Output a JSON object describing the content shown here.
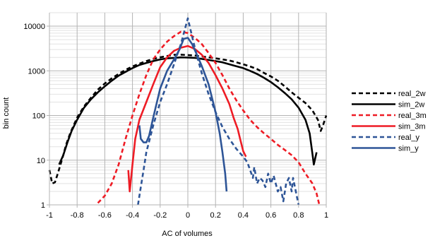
{
  "chart_data": {
    "type": "line",
    "title": "",
    "xlabel": "AC of volumes",
    "ylabel": "bin count",
    "xlim": [
      -1,
      1
    ],
    "ylim": [
      1,
      20000
    ],
    "yscale": "log",
    "grid": true,
    "legend_position": "right",
    "x_ticks": [
      {
        "value": -1,
        "label": "-1"
      },
      {
        "value": -0.8,
        "label": "-0.8"
      },
      {
        "value": -0.6,
        "label": "-0.6"
      },
      {
        "value": -0.4,
        "label": "-0.4"
      },
      {
        "value": -0.2,
        "label": "-0.2"
      },
      {
        "value": 0,
        "label": "0"
      },
      {
        "value": 0.2,
        "label": "0.2"
      },
      {
        "value": 0.4,
        "label": "0.4"
      },
      {
        "value": 0.6,
        "label": "0.6"
      },
      {
        "value": 0.8,
        "label": "0.8"
      },
      {
        "value": 1,
        "label": "1"
      }
    ],
    "y_ticks": [
      {
        "value": 1,
        "label": "1"
      },
      {
        "value": 10,
        "label": "10"
      },
      {
        "value": 100,
        "label": "100"
      },
      {
        "value": 1000,
        "label": "1000"
      },
      {
        "value": 10000,
        "label": "10000"
      }
    ],
    "series": [
      {
        "name": "real_2w",
        "color": "#000000",
        "dash": true,
        "points": [
          [
            -1,
            6
          ],
          [
            -0.98,
            3
          ],
          [
            -0.96,
            3.2
          ],
          [
            -0.94,
            5
          ],
          [
            -0.92,
            8
          ],
          [
            -0.9,
            13
          ],
          [
            -0.88,
            22
          ],
          [
            -0.85,
            40
          ],
          [
            -0.8,
            90
          ],
          [
            -0.75,
            160
          ],
          [
            -0.7,
            250
          ],
          [
            -0.65,
            380
          ],
          [
            -0.6,
            520
          ],
          [
            -0.55,
            680
          ],
          [
            -0.5,
            850
          ],
          [
            -0.45,
            1050
          ],
          [
            -0.4,
            1250
          ],
          [
            -0.35,
            1450
          ],
          [
            -0.3,
            1650
          ],
          [
            -0.25,
            1850
          ],
          [
            -0.2,
            2000
          ],
          [
            -0.15,
            2150
          ],
          [
            -0.1,
            2280
          ],
          [
            -0.05,
            2300
          ],
          [
            0,
            2250
          ],
          [
            0.05,
            2200
          ],
          [
            0.1,
            2100
          ],
          [
            0.15,
            2000
          ],
          [
            0.2,
            1900
          ],
          [
            0.25,
            1800
          ],
          [
            0.3,
            1700
          ],
          [
            0.35,
            1550
          ],
          [
            0.4,
            1400
          ],
          [
            0.45,
            1250
          ],
          [
            0.5,
            1100
          ],
          [
            0.55,
            900
          ],
          [
            0.6,
            750
          ],
          [
            0.65,
            600
          ],
          [
            0.7,
            450
          ],
          [
            0.75,
            330
          ],
          [
            0.8,
            250
          ],
          [
            0.85,
            190
          ],
          [
            0.9,
            130
          ],
          [
            0.94,
            80
          ],
          [
            0.96,
            45
          ],
          [
            0.98,
            65
          ],
          [
            1,
            100
          ]
        ]
      },
      {
        "name": "sim_2w",
        "color": "#000000",
        "dash": false,
        "points": [
          [
            -0.93,
            8
          ],
          [
            -0.9,
            13
          ],
          [
            -0.87,
            25
          ],
          [
            -0.84,
            45
          ],
          [
            -0.8,
            80
          ],
          [
            -0.75,
            150
          ],
          [
            -0.7,
            230
          ],
          [
            -0.65,
            330
          ],
          [
            -0.6,
            450
          ],
          [
            -0.55,
            600
          ],
          [
            -0.5,
            780
          ],
          [
            -0.45,
            950
          ],
          [
            -0.4,
            1150
          ],
          [
            -0.35,
            1350
          ],
          [
            -0.3,
            1500
          ],
          [
            -0.25,
            1650
          ],
          [
            -0.2,
            1800
          ],
          [
            -0.15,
            1900
          ],
          [
            -0.1,
            1950
          ],
          [
            -0.05,
            2000
          ],
          [
            0,
            1980
          ],
          [
            0.05,
            1950
          ],
          [
            0.1,
            1850
          ],
          [
            0.15,
            1750
          ],
          [
            0.2,
            1650
          ],
          [
            0.25,
            1550
          ],
          [
            0.3,
            1400
          ],
          [
            0.35,
            1270
          ],
          [
            0.4,
            1150
          ],
          [
            0.45,
            1000
          ],
          [
            0.5,
            850
          ],
          [
            0.55,
            700
          ],
          [
            0.6,
            560
          ],
          [
            0.65,
            430
          ],
          [
            0.7,
            320
          ],
          [
            0.75,
            230
          ],
          [
            0.8,
            150
          ],
          [
            0.85,
            80
          ],
          [
            0.88,
            40
          ],
          [
            0.9,
            14
          ],
          [
            0.91,
            8
          ],
          [
            0.93,
            15
          ]
        ]
      },
      {
        "name": "real_3m",
        "color": "#ee1c25",
        "dash": true,
        "points": [
          [
            -0.65,
            1.1
          ],
          [
            -0.6,
            1.6
          ],
          [
            -0.55,
            3
          ],
          [
            -0.5,
            8
          ],
          [
            -0.45,
            30
          ],
          [
            -0.4,
            100
          ],
          [
            -0.35,
            300
          ],
          [
            -0.3,
            800
          ],
          [
            -0.25,
            1800
          ],
          [
            -0.2,
            3000
          ],
          [
            -0.15,
            4500
          ],
          [
            -0.1,
            6000
          ],
          [
            -0.05,
            7500
          ],
          [
            0,
            7000
          ],
          [
            0.05,
            5500
          ],
          [
            0.1,
            4000
          ],
          [
            0.15,
            2500
          ],
          [
            0.2,
            1500
          ],
          [
            0.25,
            800
          ],
          [
            0.3,
            400
          ],
          [
            0.35,
            220
          ],
          [
            0.4,
            130
          ],
          [
            0.45,
            80
          ],
          [
            0.5,
            55
          ],
          [
            0.55,
            40
          ],
          [
            0.6,
            30
          ],
          [
            0.65,
            22
          ],
          [
            0.7,
            17
          ],
          [
            0.75,
            13
          ],
          [
            0.8,
            9
          ],
          [
            0.85,
            5
          ],
          [
            0.9,
            3
          ],
          [
            0.93,
            1.8
          ],
          [
            0.95,
            1
          ]
        ]
      },
      {
        "name": "sim_3m",
        "color": "#ee1c25",
        "dash": false,
        "points": [
          [
            -0.43,
            6
          ],
          [
            -0.42,
            2
          ],
          [
            -0.4,
            8
          ],
          [
            -0.38,
            30
          ],
          [
            -0.35,
            80
          ],
          [
            -0.3,
            200
          ],
          [
            -0.25,
            500
          ],
          [
            -0.2,
            1200
          ],
          [
            -0.15,
            2000
          ],
          [
            -0.1,
            2800
          ],
          [
            -0.05,
            3300
          ],
          [
            0,
            3600
          ],
          [
            0.05,
            3100
          ],
          [
            0.1,
            2300
          ],
          [
            0.15,
            1500
          ],
          [
            0.2,
            800
          ],
          [
            0.25,
            400
          ],
          [
            0.3,
            180
          ],
          [
            0.33,
            90
          ],
          [
            0.36,
            50
          ],
          [
            0.38,
            28
          ],
          [
            0.4,
            16
          ],
          [
            0.42,
            12
          ]
        ]
      },
      {
        "name": "real_y",
        "color": "#2e5597",
        "dash": true,
        "points": [
          [
            -0.36,
            1
          ],
          [
            -0.34,
            2.5
          ],
          [
            -0.32,
            6
          ],
          [
            -0.3,
            15
          ],
          [
            -0.25,
            60
          ],
          [
            -0.2,
            200
          ],
          [
            -0.15,
            500
          ],
          [
            -0.1,
            1400
          ],
          [
            -0.05,
            4000
          ],
          [
            0,
            15000
          ],
          [
            0.03,
            6000
          ],
          [
            0.06,
            2500
          ],
          [
            0.1,
            900
          ],
          [
            0.15,
            300
          ],
          [
            0.2,
            120
          ],
          [
            0.25,
            55
          ],
          [
            0.3,
            30
          ],
          [
            0.35,
            18
          ],
          [
            0.4,
            12
          ],
          [
            0.43,
            9
          ],
          [
            0.45,
            6
          ],
          [
            0.47,
            4
          ],
          [
            0.48,
            7
          ],
          [
            0.5,
            3
          ],
          [
            0.52,
            4
          ],
          [
            0.54,
            3.5
          ],
          [
            0.56,
            2.5
          ],
          [
            0.58,
            5
          ],
          [
            0.6,
            3
          ],
          [
            0.62,
            4.5
          ],
          [
            0.65,
            2
          ],
          [
            0.67,
            2.5
          ],
          [
            0.69,
            1.2
          ],
          [
            0.71,
            3
          ],
          [
            0.73,
            4
          ],
          [
            0.75,
            2
          ],
          [
            0.76,
            4
          ],
          [
            0.78,
            2
          ],
          [
            0.8,
            1
          ]
        ]
      },
      {
        "name": "sim_y",
        "color": "#2e5597",
        "dash": false,
        "points": [
          [
            -0.35,
            60
          ],
          [
            -0.34,
            30
          ],
          [
            -0.32,
            25
          ],
          [
            -0.3,
            25
          ],
          [
            -0.28,
            35
          ],
          [
            -0.25,
            90
          ],
          [
            -0.2,
            400
          ],
          [
            -0.15,
            1000
          ],
          [
            -0.1,
            1800
          ],
          [
            -0.06,
            3000
          ],
          [
            -0.03,
            5200
          ],
          [
            0,
            5500
          ],
          [
            0.03,
            4000
          ],
          [
            0.06,
            2500
          ],
          [
            0.1,
            1300
          ],
          [
            0.15,
            500
          ],
          [
            0.2,
            120
          ],
          [
            0.23,
            40
          ],
          [
            0.25,
            15
          ],
          [
            0.27,
            5
          ],
          [
            0.28,
            2
          ]
        ]
      }
    ]
  }
}
